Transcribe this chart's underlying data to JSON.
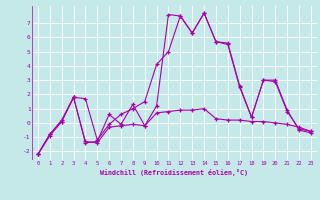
{
  "xlabel": "Windchill (Refroidissement éolien,°C)",
  "background_color": "#c5e8e8",
  "line_color": "#aa00aa",
  "grid_color": "#ffffff",
  "xlim": [
    -0.5,
    23.5
  ],
  "ylim": [
    -2.6,
    8.2
  ],
  "yticks": [
    -2,
    -1,
    0,
    1,
    2,
    3,
    4,
    5,
    6,
    7
  ],
  "xticks": [
    0,
    1,
    2,
    3,
    4,
    5,
    6,
    7,
    8,
    9,
    10,
    11,
    12,
    13,
    14,
    15,
    16,
    17,
    18,
    19,
    20,
    21,
    22,
    23
  ],
  "series": [
    [
      0,
      1,
      2,
      3,
      4,
      5,
      6,
      7,
      8,
      9,
      10,
      11,
      12,
      13,
      14,
      15,
      16,
      17,
      18,
      19,
      20,
      21,
      22,
      23
    ],
    [
      -2.2,
      -0.8,
      0.2,
      1.8,
      -1.4,
      -1.3,
      0.6,
      -0.1,
      1.3,
      -0.2,
      1.2,
      7.6,
      7.5,
      6.3,
      7.7,
      5.7,
      5.6,
      2.6,
      0.4,
      3.0,
      3.0,
      0.9,
      -0.5,
      -0.7
    ],
    [
      -2.2,
      -0.9,
      0.1,
      1.8,
      -1.3,
      -1.4,
      -0.3,
      -0.2,
      -0.1,
      -0.2,
      0.7,
      0.8,
      0.9,
      0.9,
      1.0,
      0.3,
      0.2,
      0.2,
      0.1,
      0.1,
      0.0,
      -0.1,
      -0.3,
      -0.6
    ],
    [
      -2.2,
      -0.8,
      0.1,
      1.8,
      1.7,
      -1.2,
      -0.1,
      0.6,
      1.0,
      1.5,
      4.1,
      5.0,
      7.5,
      6.3,
      7.7,
      5.7,
      5.5,
      2.5,
      0.4,
      3.0,
      2.9,
      0.8,
      -0.4,
      -0.6
    ]
  ]
}
